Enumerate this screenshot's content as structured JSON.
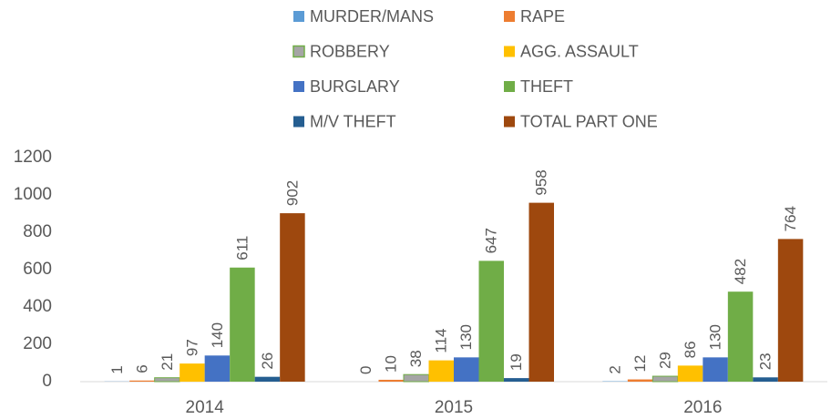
{
  "chart_data": {
    "type": "bar",
    "categories": [
      "2014",
      "2015",
      "2016"
    ],
    "series": [
      {
        "name": "MURDER/MANS",
        "color": "#5b9bd5",
        "values": [
          1,
          0,
          2
        ]
      },
      {
        "name": "RAPE",
        "color": "#ed7d31",
        "values": [
          6,
          10,
          12
        ]
      },
      {
        "name": "ROBBERY",
        "color": "#a5a5a5",
        "values": [
          21,
          38,
          29
        ]
      },
      {
        "name": "AGG. ASSAULT",
        "color": "#ffc000",
        "values": [
          97,
          114,
          86
        ]
      },
      {
        "name": "BURGLARY",
        "color": "#4472c4",
        "values": [
          140,
          130,
          130
        ]
      },
      {
        "name": "THEFT",
        "color": "#70ad47",
        "values": [
          611,
          647,
          482
        ]
      },
      {
        "name": "M/V THEFT",
        "color": "#255e91",
        "values": [
          26,
          19,
          23
        ]
      },
      {
        "name": "TOTAL PART ONE",
        "color": "#9e480e",
        "values": [
          902,
          958,
          764
        ]
      }
    ],
    "ylim": [
      0,
      1200
    ],
    "yticks": [
      0,
      200,
      400,
      600,
      800,
      1000,
      1200
    ],
    "grid": false,
    "legend": "top"
  }
}
